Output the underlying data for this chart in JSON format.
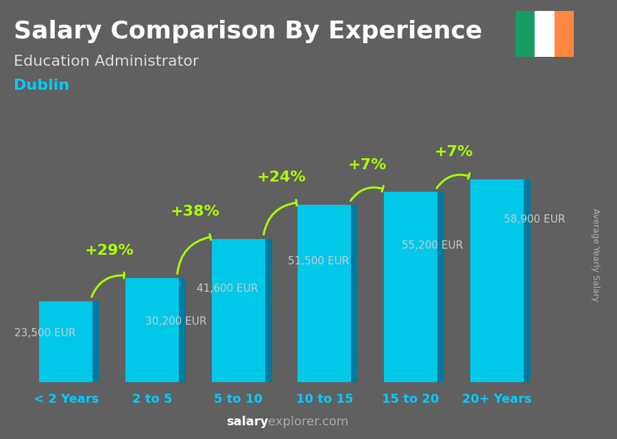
{
  "title": "Salary Comparison By Experience",
  "subtitle": "Education Administrator",
  "city": "Dublin",
  "watermark": "salaryexplorer.com",
  "ylabel": "Average Yearly Salary",
  "categories": [
    "< 2 Years",
    "2 to 5",
    "5 to 10",
    "10 to 15",
    "15 to 20",
    "20+ Years"
  ],
  "values": [
    23500,
    30200,
    41600,
    51500,
    55200,
    58900
  ],
  "labels": [
    "23,500 EUR",
    "30,200 EUR",
    "41,600 EUR",
    "51,500 EUR",
    "55,200 EUR",
    "58,900 EUR"
  ],
  "pct_changes": [
    null,
    "+29%",
    "+38%",
    "+24%",
    "+7%",
    "+7%"
  ],
  "bar_color_main": "#00C8E8",
  "bar_color_side": "#007A9E",
  "bar_color_top": "#55E0FF",
  "bg_color": "#606060",
  "title_color": "#FFFFFF",
  "subtitle_color": "#DDDDDD",
  "city_color": "#00CCFF",
  "label_color": "#CCCCCC",
  "pct_color": "#AAFF00",
  "arrow_color": "#AAFF00",
  "xtick_color": "#00CCFF",
  "watermark_bold_color": "#FFFFFF",
  "watermark_light_color": "#AAAAAA",
  "ylabel_color": "#BBBBBB",
  "title_fontsize": 26,
  "subtitle_fontsize": 16,
  "city_fontsize": 16,
  "label_fontsize": 11,
  "pct_fontsize": 16,
  "xtick_fontsize": 13,
  "ylabel_fontsize": 9,
  "watermark_fontsize": 13
}
